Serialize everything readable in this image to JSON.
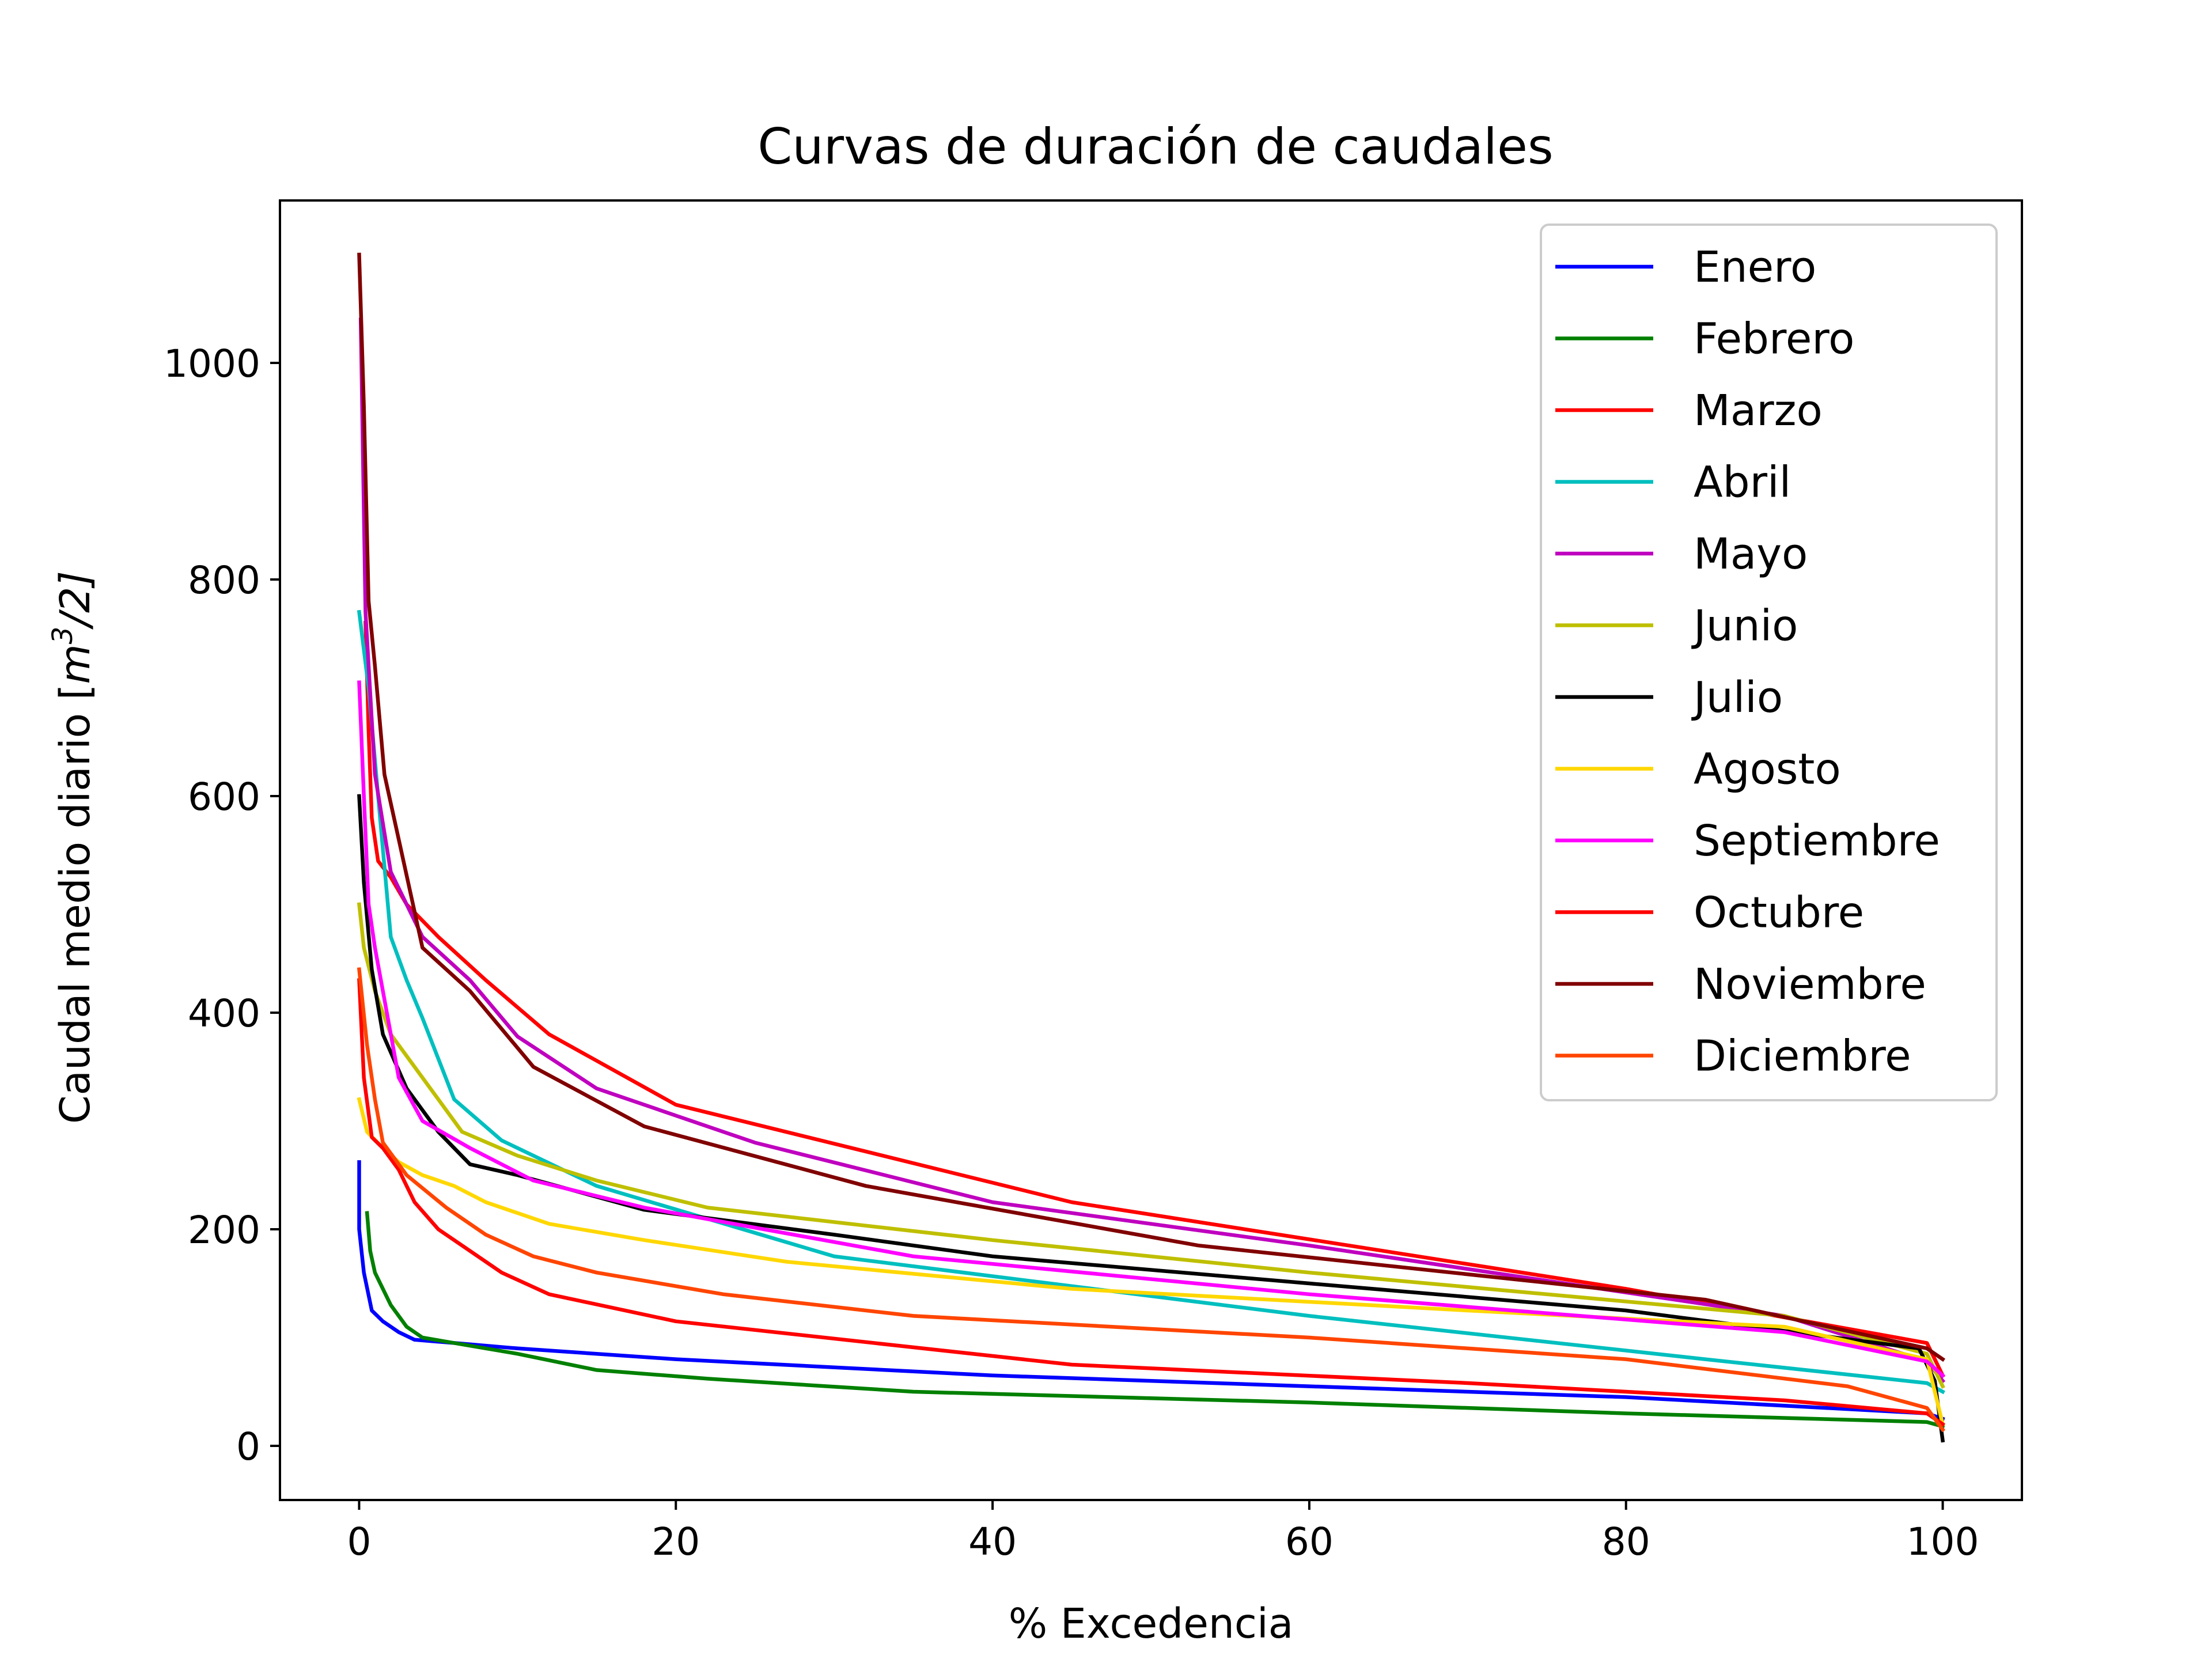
{
  "chart_data": {
    "type": "line",
    "title": "Curvas de duración de caudales",
    "xlabel": "% Excedencia",
    "ylabel_prefix": "Caudal medio diario [",
    "ylabel_m": "m",
    "ylabel_sup": "3",
    "ylabel_suffix": "/2]",
    "xlim": [
      -5,
      105
    ],
    "ylim": [
      -50,
      1150
    ],
    "xticks": [
      0,
      20,
      40,
      60,
      80,
      100
    ],
    "yticks": [
      0,
      200,
      400,
      600,
      800,
      1000
    ],
    "grid": false,
    "legend_position": "upper right",
    "series": [
      {
        "name": "Enero",
        "color": "#0000ff",
        "x": [
          0,
          0,
          0.3,
          0.8,
          1.5,
          2.5,
          3.5,
          6,
          10,
          20,
          40,
          60,
          80,
          99,
          100
        ],
        "y": [
          262,
          200,
          160,
          125,
          115,
          105,
          98,
          95,
          90,
          80,
          65,
          55,
          45,
          30,
          25
        ]
      },
      {
        "name": "Febrero",
        "color": "#008000",
        "x": [
          0.5,
          0.7,
          1,
          2,
          3,
          4,
          6,
          10,
          15,
          22,
          35,
          60,
          80,
          99,
          100
        ],
        "y": [
          215,
          180,
          160,
          130,
          110,
          100,
          95,
          85,
          70,
          62,
          50,
          40,
          30,
          22,
          18
        ]
      },
      {
        "name": "Marzo",
        "color": "#ff0000",
        "x": [
          0.4,
          0.6,
          0.8,
          1.2,
          2,
          3,
          5,
          8,
          12,
          20,
          45,
          80,
          99,
          100
        ],
        "y": [
          760,
          660,
          580,
          540,
          525,
          500,
          470,
          430,
          380,
          315,
          225,
          145,
          95,
          65
        ]
      },
      {
        "name": "Abril",
        "color": "#00bfbf",
        "x": [
          0,
          0.6,
          1.2,
          2,
          3,
          4,
          6,
          9,
          15,
          30,
          60,
          85,
          99,
          100
        ],
        "y": [
          770,
          700,
          600,
          470,
          430,
          395,
          320,
          282,
          240,
          175,
          120,
          80,
          58,
          50
        ]
      },
      {
        "name": "Mayo",
        "color": "#bf00bf",
        "x": [
          0.1,
          0.4,
          1,
          2,
          4,
          7,
          10,
          15,
          25,
          40,
          60,
          90,
          99,
          100
        ],
        "y": [
          1040,
          770,
          620,
          530,
          470,
          430,
          378,
          330,
          280,
          225,
          185,
          120,
          78,
          60
        ]
      },
      {
        "name": "Junio",
        "color": "#bfbf00",
        "x": [
          0,
          0.3,
          1,
          2,
          4,
          6.5,
          10,
          15,
          22,
          40,
          60,
          90,
          99,
          100
        ],
        "y": [
          500,
          460,
          420,
          380,
          340,
          290,
          268,
          245,
          220,
          190,
          160,
          120,
          85,
          55
        ]
      },
      {
        "name": "Julio",
        "color": "#000000",
        "x": [
          0,
          0.3,
          0.8,
          1.5,
          3,
          5,
          7,
          10,
          18,
          30,
          40,
          60,
          80,
          98.5,
          99.5,
          100
        ],
        "y": [
          600,
          520,
          440,
          380,
          330,
          290,
          260,
          250,
          218,
          195,
          175,
          150,
          125,
          90,
          60,
          5
        ]
      },
      {
        "name": "Agosto",
        "color": "#ffd700",
        "x": [
          0,
          0.5,
          1.5,
          2.5,
          4,
          6,
          8,
          12,
          18,
          27,
          45,
          70,
          90,
          99,
          100
        ],
        "y": [
          320,
          290,
          275,
          262,
          250,
          240,
          225,
          205,
          190,
          170,
          145,
          125,
          110,
          80,
          20
        ]
      },
      {
        "name": "Septiembre",
        "color": "#ff00ff",
        "x": [
          0,
          0.3,
          0.6,
          1,
          1.5,
          2.5,
          4,
          7,
          11,
          18,
          35,
          60,
          90,
          99,
          100
        ],
        "y": [
          705,
          600,
          500,
          460,
          420,
          340,
          300,
          275,
          245,
          220,
          175,
          140,
          105,
          78,
          65
        ]
      },
      {
        "name": "Octubre",
        "color": "#ff0000",
        "x": [
          0,
          0.3,
          0.8,
          1.5,
          2.5,
          3.5,
          5,
          7,
          9,
          12,
          20,
          45,
          70,
          90,
          99,
          100
        ],
        "y": [
          430,
          340,
          285,
          275,
          255,
          225,
          200,
          180,
          160,
          140,
          115,
          75,
          58,
          42,
          30,
          20
        ]
      },
      {
        "name": "Noviembre",
        "color": "#800000",
        "x": [
          0,
          0.3,
          0.6,
          1,
          1.6,
          2.5,
          4,
          7,
          11,
          18,
          32,
          53,
          85,
          99,
          100
        ],
        "y": [
          1100,
          960,
          780,
          720,
          620,
          560,
          460,
          420,
          350,
          295,
          240,
          185,
          135,
          90,
          80
        ]
      },
      {
        "name": "Diciembre",
        "color": "#ff4500",
        "x": [
          0,
          0.5,
          1,
          1.5,
          3,
          5.5,
          8,
          11,
          15,
          23,
          35,
          60,
          80,
          94,
          99,
          100
        ],
        "y": [
          440,
          370,
          320,
          280,
          250,
          220,
          195,
          175,
          160,
          140,
          120,
          100,
          80,
          55,
          35,
          15
        ]
      }
    ]
  }
}
